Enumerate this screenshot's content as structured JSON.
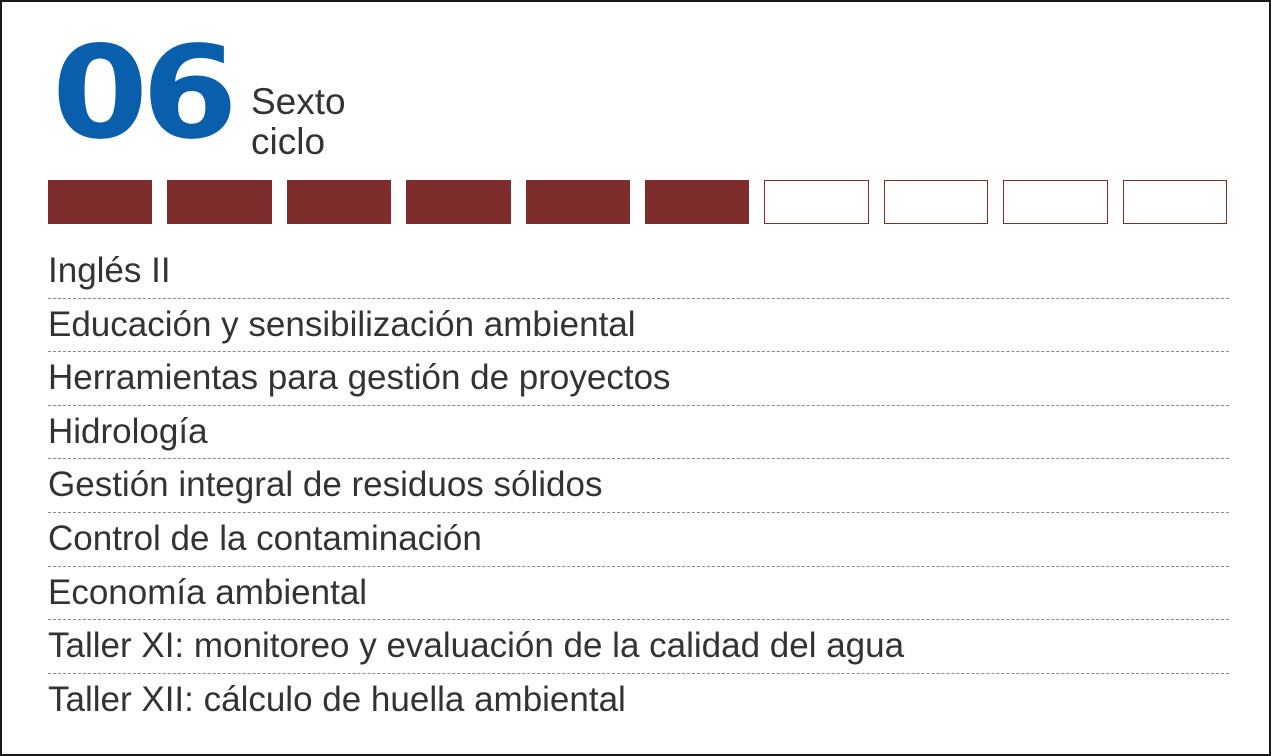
{
  "cycle": {
    "number": "06",
    "label_line1": "Sexto",
    "label_line2": "ciclo"
  },
  "progress": {
    "completed": 6,
    "total": 10,
    "filled_color": "#7e2c2c",
    "empty_color": "#ffffff",
    "border_color": "#7e2c2c"
  },
  "courses": [
    "Inglés II",
    "Educación y sensibilización ambiental",
    "Herramientas para gestión de proyectos",
    "Hidrología",
    "Gestión integral de residuos sólidos",
    "Control de la contaminación",
    "Economía ambiental",
    "Taller XI: monitoreo y evaluación de la calidad del agua",
    "Taller XII: cálculo de huella ambiental"
  ],
  "colors": {
    "accent_blue": "#0a5fac",
    "accent_maroon": "#7e2c2c",
    "text": "#333333"
  }
}
